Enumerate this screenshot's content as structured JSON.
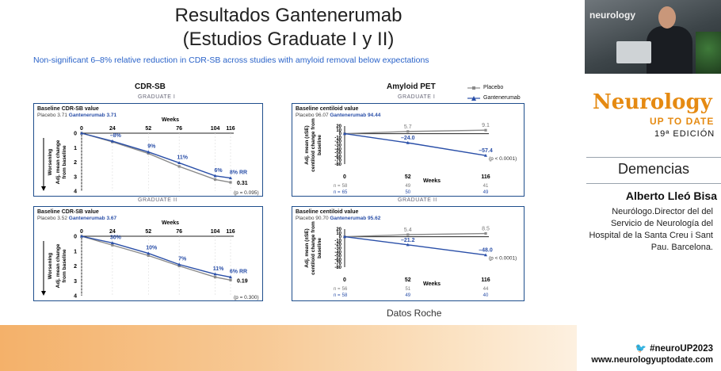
{
  "slide": {
    "title_line1": "Resultados Gantenerumab",
    "title_line2": "(Estudios Graduate I y II)",
    "subtitle": "Non-significant 6–8% relative reduction in CDR-SB across studies with amyloid removal below expectations",
    "left_heading": "CDR-SB",
    "right_heading": "Amyloid PET",
    "source": "Datos Roche",
    "legend": {
      "placebo": "Placebo",
      "gantenerumab": "Gantenerumab"
    },
    "badge_1": "GRADUATE I",
    "badge_2": "GRADUATE II"
  },
  "colors": {
    "placebo": "#8a8a8a",
    "gantenerumab": "#2a4fa8",
    "accent": "#e58a12",
    "border": "#1f4e8c"
  },
  "panels": {
    "cdr_1": {
      "baseline_title": "Baseline CDR-SB value",
      "placebo_label": "Placebo",
      "placebo_value": "3.71",
      "gant_label": "Gantenerumab",
      "gant_value": "3.71",
      "x_title": "Weeks",
      "y_title_1": "Worsening",
      "y_title_2": "Adj. mean change",
      "y_title_3": "from baseline",
      "diff": "0.31",
      "pval": "(p = 0.095)",
      "rr": "8% RR"
    },
    "cdr_2": {
      "baseline_title": "Baseline CDR-SB value",
      "placebo_label": "Placebo",
      "placebo_value": "3.52",
      "gant_label": "Gantenerumab",
      "gant_value": "3.67",
      "x_title": "Weeks",
      "y_title_1": "Worsening",
      "y_title_2": "Adj. mean change",
      "y_title_3": "from baseline",
      "diff": "0.19",
      "pval": "(p = 0.300)",
      "rr": "6% RR"
    },
    "pet_1": {
      "baseline_title": "Baseline centiloid value",
      "placebo_label": "Placebo",
      "placebo_value": "96.07",
      "gant_label": "Gantenerumab",
      "gant_value": "94.44",
      "x_title": "Weeks",
      "y_title_1": "Adj. mean (±SE)",
      "y_title_2": "centiloid change from",
      "y_title_3": "baseline",
      "pval": "(p < 0.0001)"
    },
    "pet_2": {
      "baseline_title": "Baseline centiloid value",
      "placebo_label": "Placebo",
      "placebo_value": "90.70",
      "gant_label": "Gantenerumab",
      "gant_value": "95.62",
      "x_title": "Weeks",
      "y_title_1": "Adj. mean (±SE)",
      "y_title_2": "centiloid change from",
      "y_title_3": "baseline",
      "pval": "(p < 0.0001)"
    }
  },
  "chart_data": [
    {
      "type": "line",
      "panel": "cdr_1",
      "x": [
        0,
        24,
        52,
        76,
        104,
        116
      ],
      "xlabel": "Weeks",
      "ylim": [
        4,
        0
      ],
      "yticks": [
        0,
        1,
        2,
        3,
        4
      ],
      "series": [
        {
          "name": "Placebo",
          "values": [
            0,
            0.6,
            1.4,
            2.3,
            3.2,
            3.4
          ]
        },
        {
          "name": "Gantenerumab",
          "values": [
            0,
            0.55,
            1.3,
            2.05,
            2.95,
            3.1
          ]
        }
      ],
      "annotations": [
        "–8%",
        "9%",
        "11%",
        "6%",
        "8% RR"
      ]
    },
    {
      "type": "line",
      "panel": "pet_1",
      "x": [
        0,
        52,
        116
      ],
      "xlabel": "Weeks",
      "ylim": [
        -80,
        20
      ],
      "yticks": [
        20,
        10,
        0,
        -10,
        -20,
        -30,
        -40,
        -50,
        -60,
        -70,
        -80
      ],
      "series": [
        {
          "name": "Placebo",
          "values": [
            0,
            5.7,
            9.1
          ],
          "n": [
            "58",
            "49",
            "41"
          ]
        },
        {
          "name": "Gantenerumab",
          "values": [
            0,
            -24.0,
            -57.4
          ],
          "n": [
            "65",
            "50",
            "49"
          ]
        }
      ],
      "point_labels": {
        "placebo": [
          "",
          "5.7",
          "9.1"
        ],
        "gantenerumab": [
          "",
          "–24.0",
          "–57.4"
        ]
      }
    },
    {
      "type": "line",
      "panel": "cdr_2",
      "x": [
        0,
        24,
        52,
        76,
        104,
        116
      ],
      "xlabel": "Weeks",
      "ylim": [
        4,
        0
      ],
      "yticks": [
        0,
        1,
        2,
        3,
        4
      ],
      "series": [
        {
          "name": "Placebo",
          "values": [
            0,
            0.6,
            1.3,
            2.0,
            2.75,
            2.95
          ]
        },
        {
          "name": "Gantenerumab",
          "values": [
            0,
            0.45,
            1.15,
            1.9,
            2.55,
            2.75
          ]
        }
      ],
      "annotations": [
        "30%",
        "10%",
        "7%",
        "11%",
        "6% RR"
      ]
    },
    {
      "type": "line",
      "panel": "pet_2",
      "x": [
        0,
        52,
        116
      ],
      "xlabel": "Weeks",
      "ylim": [
        -80,
        20
      ],
      "yticks": [
        20,
        10,
        0,
        -10,
        -20,
        -30,
        -40,
        -50,
        -60,
        -70,
        -80
      ],
      "series": [
        {
          "name": "Placebo",
          "values": [
            0,
            5.4,
            8.5
          ],
          "n": [
            "56",
            "51",
            "44"
          ]
        },
        {
          "name": "Gantenerumab",
          "values": [
            0,
            -21.2,
            -48.0
          ],
          "n": [
            "58",
            "49",
            "40"
          ]
        }
      ],
      "point_labels": {
        "placebo": [
          "",
          "5.4",
          "8.5"
        ],
        "gantenerumab": [
          "",
          "–21.2",
          "–48.0"
        ]
      }
    }
  ],
  "sidebar": {
    "video_logo": "neurology",
    "brand_main": "Neurology",
    "brand_sub": "UP TO DATE",
    "brand_edition": "19ª EDICIÓN",
    "topic": "Demencias",
    "speaker": "Alberto Lleó Bisa",
    "bio": "Neurólogo.Director del del Servicio de Neurología del Hospital de la Santa Creu i Sant Pau. Barcelona.",
    "hashtag": "#neuroUP2023",
    "url": "www.neurologyuptodate.com"
  }
}
